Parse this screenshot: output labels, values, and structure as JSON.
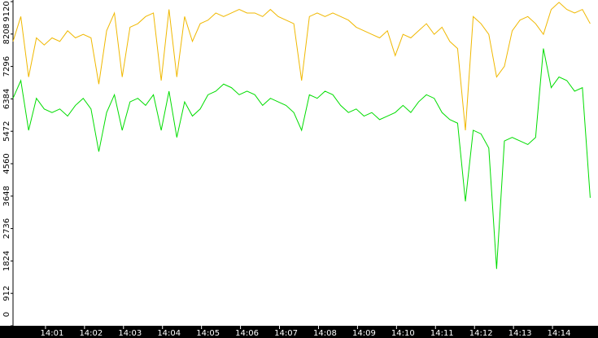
{
  "chart_data": {
    "type": "line",
    "x": [
      0,
      0.2,
      0.4,
      0.6,
      0.8,
      1,
      1.2,
      1.4,
      1.6,
      1.8,
      2,
      2.2,
      2.4,
      2.6,
      2.8,
      3,
      3.2,
      3.4,
      3.6,
      3.8,
      4,
      4.2,
      4.4,
      4.6,
      4.8,
      5,
      5.2,
      5.4,
      5.6,
      5.8,
      6,
      6.2,
      6.4,
      6.6,
      6.8,
      7,
      7.2,
      7.4,
      7.6,
      7.8,
      8,
      8.2,
      8.4,
      8.6,
      8.8,
      9,
      9.2,
      9.4,
      9.6,
      9.8,
      10,
      10.2,
      10.4,
      10.6,
      10.8,
      11,
      11.2,
      11.4,
      11.6,
      11.8,
      12,
      12.2,
      12.4,
      12.6,
      12.8,
      13,
      13.2,
      13.4,
      13.6,
      13.8,
      14,
      14.2,
      14.4,
      14.6,
      14.8
    ],
    "series": [
      {
        "color": "#f0b800",
        "values": [
          8000,
          8700,
          7000,
          8100,
          7900,
          8100,
          8000,
          8300,
          8100,
          8200,
          8100,
          6800,
          8300,
          8800,
          7000,
          8400,
          8500,
          8700,
          8800,
          6900,
          8900,
          7000,
          8700,
          8000,
          8500,
          8600,
          8800,
          8700,
          8800,
          8900,
          8800,
          8800,
          8700,
          8900,
          8700,
          8600,
          8500,
          6900,
          8700,
          8800,
          8700,
          8800,
          8700,
          8600,
          8400,
          8300,
          8200,
          8100,
          8300,
          7600,
          8200,
          8100,
          8300,
          8500,
          8200,
          8400,
          8000,
          7800,
          5500,
          8700,
          8500,
          8200,
          7000,
          7300,
          8300,
          8600,
          8700,
          8500,
          8200,
          8900,
          9100,
          8900,
          8800,
          8900,
          8500
        ]
      },
      {
        "color": "#00dd00",
        "values": [
          6400,
          6900,
          5500,
          6400,
          6100,
          6000,
          6100,
          5900,
          6200,
          6400,
          6100,
          4900,
          6000,
          6500,
          5500,
          6300,
          6400,
          6200,
          6500,
          5500,
          6600,
          5300,
          6300,
          5900,
          6100,
          6500,
          6600,
          6800,
          6700,
          6500,
          6600,
          6500,
          6200,
          6400,
          6300,
          6200,
          6000,
          5500,
          6500,
          6400,
          6600,
          6500,
          6200,
          6000,
          6100,
          5900,
          6000,
          5800,
          5900,
          6000,
          6200,
          6000,
          6300,
          6500,
          6400,
          6000,
          5800,
          5700,
          3500,
          5500,
          5400,
          5000,
          1600,
          5200,
          5300,
          5200,
          5100,
          5300,
          7800,
          6700,
          7000,
          6900,
          6600,
          6700,
          3600
        ]
      }
    ],
    "xlim": [
      0,
      15
    ],
    "xticks": [
      {
        "value": 1,
        "label": "14:01"
      },
      {
        "value": 2,
        "label": "14:02"
      },
      {
        "value": 3,
        "label": "14:03"
      },
      {
        "value": 4,
        "label": "14:04"
      },
      {
        "value": 5,
        "label": "14:05"
      },
      {
        "value": 6,
        "label": "14:06"
      },
      {
        "value": 7,
        "label": "14:07"
      },
      {
        "value": 8,
        "label": "14:08"
      },
      {
        "value": 9,
        "label": "14:09"
      },
      {
        "value": 10,
        "label": "14:10"
      },
      {
        "value": 11,
        "label": "14:11"
      },
      {
        "value": 12,
        "label": "14:12"
      },
      {
        "value": 13,
        "label": "14:13"
      },
      {
        "value": 14,
        "label": "14:14"
      }
    ],
    "ylim": [
      0,
      9120
    ],
    "yticks": [
      0,
      912,
      1824,
      2736,
      3648,
      4560,
      5472,
      6384,
      7296,
      8208,
      9120
    ]
  }
}
